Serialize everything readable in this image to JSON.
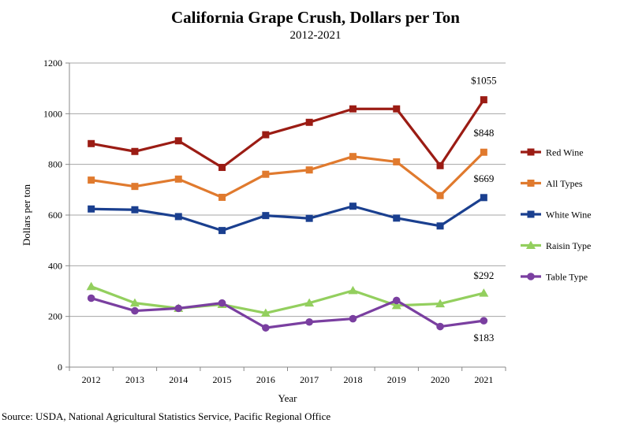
{
  "chart_data": {
    "type": "line",
    "title": "California Grape Crush, Dollars per Ton",
    "subtitle": "2012-2021",
    "xlabel": "Year",
    "ylabel": "Dollars per ton",
    "source": "Source: USDA, National Agricultural Statistics Service, Pacific Regional Office",
    "x": [
      "2012",
      "2013",
      "2014",
      "2015",
      "2016",
      "2017",
      "2018",
      "2019",
      "2020",
      "2021"
    ],
    "yticks": [
      "0",
      "200",
      "400",
      "600",
      "800",
      "1000",
      "1200"
    ],
    "ylim": [
      0,
      1200
    ],
    "grid": "horizontal",
    "legend_position": "right",
    "series": [
      {
        "name": "Red Wine",
        "color": "#9b1c14",
        "marker": "square",
        "values": [
          882,
          851,
          893,
          788,
          917,
          966,
          1019,
          1019,
          795,
          1055
        ]
      },
      {
        "name": "All Types",
        "color": "#e07a2e",
        "marker": "square",
        "values": [
          738,
          713,
          742,
          670,
          761,
          778,
          831,
          810,
          677,
          848
        ]
      },
      {
        "name": "White Wine",
        "color": "#1a3f8f",
        "marker": "square",
        "values": [
          624,
          621,
          594,
          539,
          598,
          587,
          635,
          588,
          557,
          669
        ]
      },
      {
        "name": "Raisin Type",
        "color": "#93cf5e",
        "marker": "triangle",
        "values": [
          318,
          253,
          232,
          247,
          213,
          253,
          302,
          243,
          250,
          292
        ]
      },
      {
        "name": "Table Type",
        "color": "#7a3fa0",
        "marker": "circle",
        "values": [
          272,
          222,
          232,
          253,
          155,
          178,
          191,
          263,
          160,
          183
        ]
      }
    ],
    "annotations": [
      {
        "text": "$1055",
        "series": "Red Wine",
        "x": "2021"
      },
      {
        "text": "$848",
        "series": "All Types",
        "x": "2021"
      },
      {
        "text": "$669",
        "series": "White Wine",
        "x": "2021"
      },
      {
        "text": "$292",
        "series": "Raisin Type",
        "x": "2021"
      },
      {
        "text": "$183",
        "series": "Table Type",
        "x": "2021"
      }
    ]
  }
}
